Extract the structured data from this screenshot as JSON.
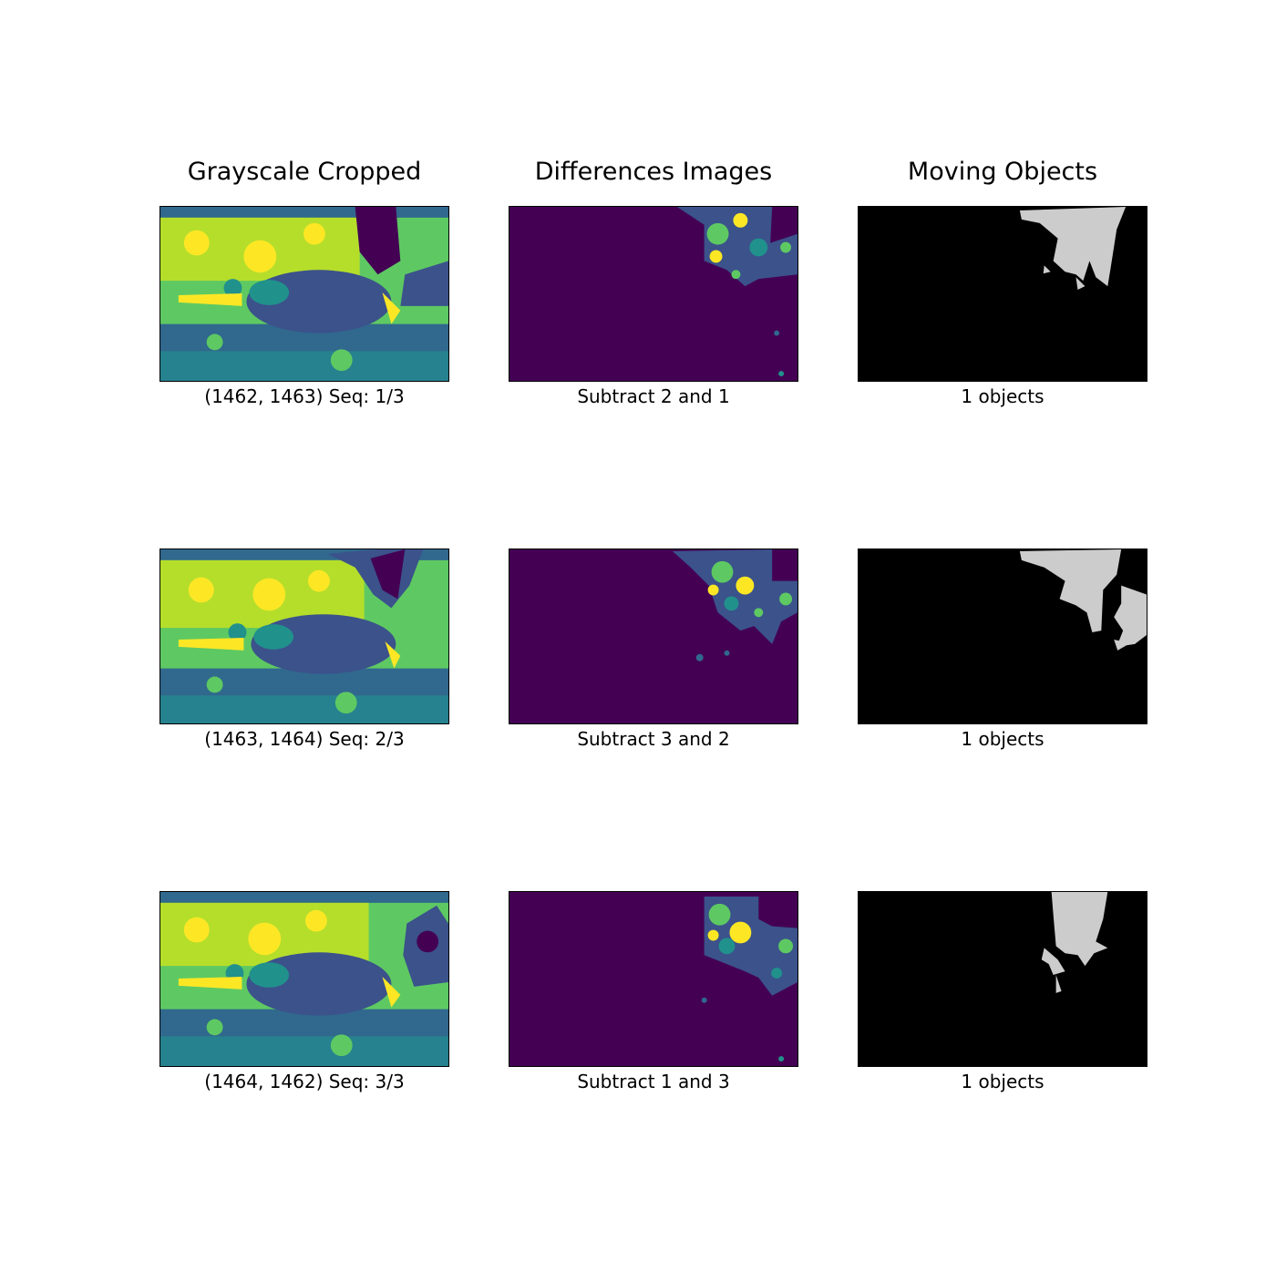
{
  "columns": [
    {
      "title": "Grayscale Cropped"
    },
    {
      "title": "Differences Images"
    },
    {
      "title": "Moving Objects"
    }
  ],
  "rows": [
    {
      "gray_caption": "(1462, 1463)  Seq: 1/3",
      "diff_caption": "Subtract 2 and 1",
      "obj_caption": "1 objects"
    },
    {
      "gray_caption": "(1463, 1464)  Seq: 2/3",
      "diff_caption": "Subtract 3 and 2",
      "obj_caption": "1 objects"
    },
    {
      "gray_caption": "(1464, 1462)  Seq: 3/3",
      "diff_caption": "Subtract 1 and 3",
      "obj_caption": "1 objects"
    }
  ],
  "colors": {
    "viridis_dark": "#440154",
    "viridis_blue": "#31688e",
    "viridis_teal": "#21918c",
    "viridis_green": "#5ec962",
    "viridis_yellow": "#fde725",
    "mask_bg": "#000000",
    "mask_fg": "#cccccc"
  }
}
